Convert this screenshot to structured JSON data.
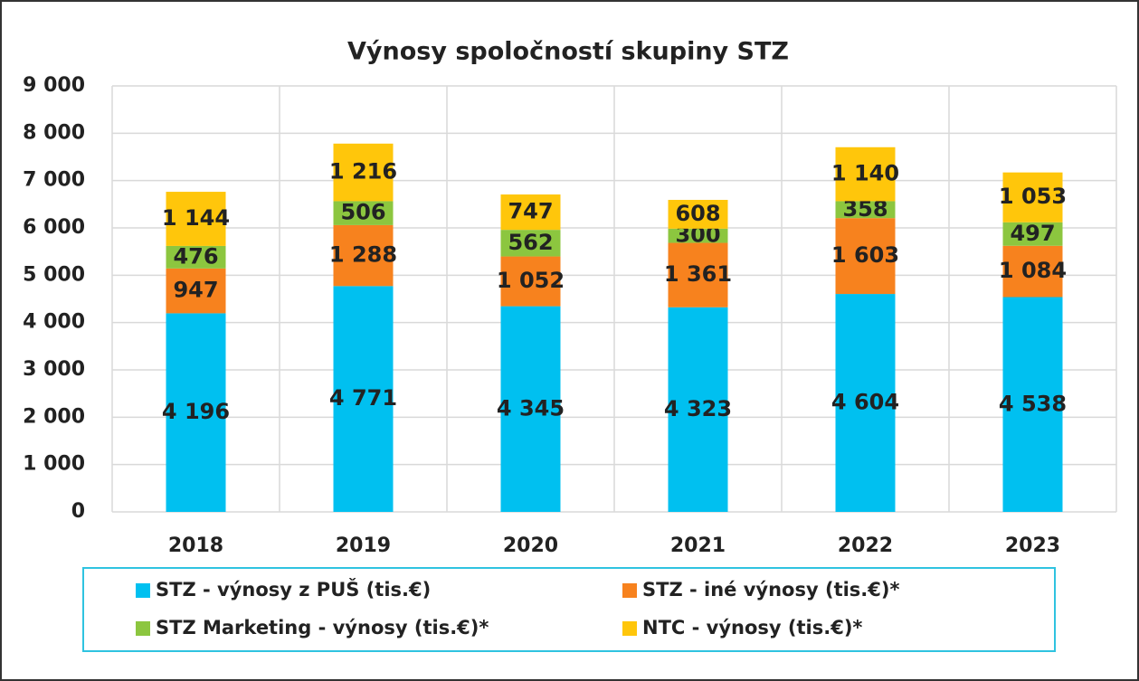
{
  "chart_data": {
    "type": "stacked_bar",
    "title": "Výnosy spoločností skupiny STZ",
    "categories": [
      "2018",
      "2019",
      "2020",
      "2021",
      "2022",
      "2023"
    ],
    "series": [
      {
        "name": "STZ - výnosy z PUŠ (tis.€)",
        "color": "#00c0f0",
        "values": [
          4196,
          4771,
          4345,
          4323,
          4604,
          4538
        ],
        "value_labels": [
          "4 196",
          "4 771",
          "4 345",
          "4 323",
          "4 604",
          "4 538"
        ]
      },
      {
        "name": "STZ - iné výnosy (tis.€)*",
        "color": "#f7821e",
        "values": [
          947,
          1288,
          1052,
          1361,
          1603,
          1084
        ],
        "value_labels": [
          "947",
          "1 288",
          "1 052",
          "1 361",
          "1 603",
          "1 084"
        ]
      },
      {
        "name": "STZ Marketing - výnosy (tis.€)*",
        "color": "#8cc63f",
        "values": [
          476,
          506,
          562,
          300,
          358,
          497
        ],
        "value_labels": [
          "476",
          "506",
          "562",
          "300",
          "358",
          "497"
        ]
      },
      {
        "name": "NTC - výnosy (tis.€)*",
        "color": "#ffc60b",
        "values": [
          1144,
          1216,
          747,
          608,
          1140,
          1053
        ],
        "value_labels": [
          "1 144",
          "1 216",
          "747",
          "608",
          "1 140",
          "1 053"
        ]
      }
    ],
    "ylim": [
      0,
      9000
    ],
    "yticks": [
      0,
      {
        "value": 1000,
        "label": "1 000"
      },
      {
        "value": 2000,
        "label": "2 000"
      },
      {
        "value": 3000,
        "label": "3 000"
      },
      {
        "value": 4000,
        "label": "4 000"
      },
      {
        "value": 5000,
        "label": "5 000"
      },
      {
        "value": 6000,
        "label": "6 000"
      },
      {
        "value": 7000,
        "label": "7 000"
      },
      {
        "value": 8000,
        "label": "8 000"
      },
      {
        "value": 9000,
        "label": "9 000"
      }
    ],
    "grid": true
  }
}
